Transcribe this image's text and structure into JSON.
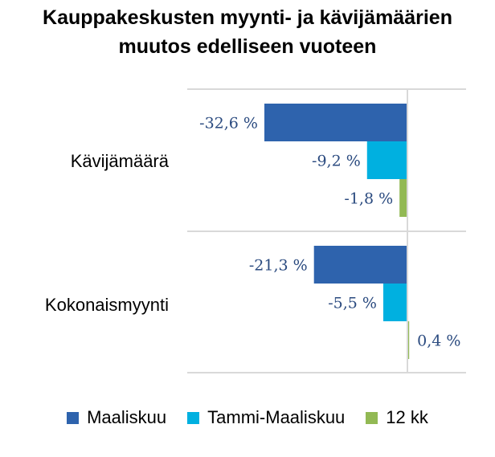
{
  "chart_data": {
    "type": "bar",
    "orientation": "horizontal",
    "title_lines": [
      "Kauppakeskusten myynti- ja kävijämäärien",
      "muutos edelliseen vuoteen"
    ],
    "categories": [
      "Kävijämäärä",
      "Kokonaismyynti"
    ],
    "series": [
      {
        "name": "Maaliskuu",
        "color": "#2e63ad",
        "values": [
          -32.6,
          -21.3
        ],
        "labels": [
          "-32,6 %",
          "-21,3 %"
        ]
      },
      {
        "name": "Tammi-Maaliskuu",
        "color": "#00b0e0",
        "values": [
          -9.2,
          -5.5
        ],
        "labels": [
          "-9,2 %",
          "-5,5 %"
        ]
      },
      {
        "name": "12 kk",
        "color": "#92b954",
        "values": [
          -1.8,
          0.4
        ],
        "labels": [
          "-1,8 %",
          "0,4 %"
        ]
      }
    ],
    "xlim": [
      -40,
      13
    ],
    "grid": false,
    "legend_position": "bottom"
  }
}
